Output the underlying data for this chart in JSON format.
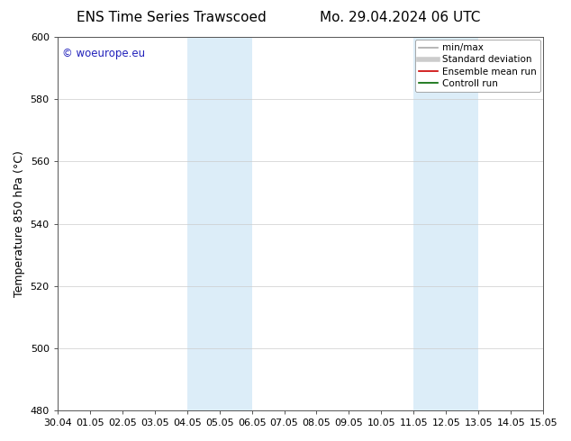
{
  "title_left": "ENS Time Series Trawscoed",
  "title_right": "Mo. 29.04.2024 06 UTC",
  "ylabel": "Temperature 850 hPa (°C)",
  "xtick_labels": [
    "30.04",
    "01.05",
    "02.05",
    "03.05",
    "04.05",
    "05.05",
    "06.05",
    "07.05",
    "08.05",
    "09.05",
    "10.05",
    "11.05",
    "12.05",
    "13.05",
    "14.05",
    "15.05"
  ],
  "ylim": [
    480,
    600
  ],
  "yticks": [
    480,
    500,
    520,
    540,
    560,
    580,
    600
  ],
  "shaded_regions": [
    {
      "xstart": 4,
      "xend": 6,
      "color": "#dcedf8"
    },
    {
      "xstart": 11,
      "xend": 13,
      "color": "#dcedf8"
    }
  ],
  "watermark_text": "© woeurope.eu",
  "watermark_color": "#2222bb",
  "legend_entries": [
    {
      "label": "min/max",
      "color": "#aaaaaa",
      "lw": 1.2,
      "style": "solid"
    },
    {
      "label": "Standard deviation",
      "color": "#cccccc",
      "lw": 4,
      "style": "solid"
    },
    {
      "label": "Ensemble mean run",
      "color": "#cc0000",
      "lw": 1.2,
      "style": "solid"
    },
    {
      "label": "Controll run",
      "color": "#006600",
      "lw": 1.2,
      "style": "solid"
    }
  ],
  "background_color": "#ffffff",
  "grid_color": "#cccccc",
  "title_fontsize": 11,
  "label_fontsize": 9,
  "tick_fontsize": 8,
  "legend_fontsize": 7.5
}
